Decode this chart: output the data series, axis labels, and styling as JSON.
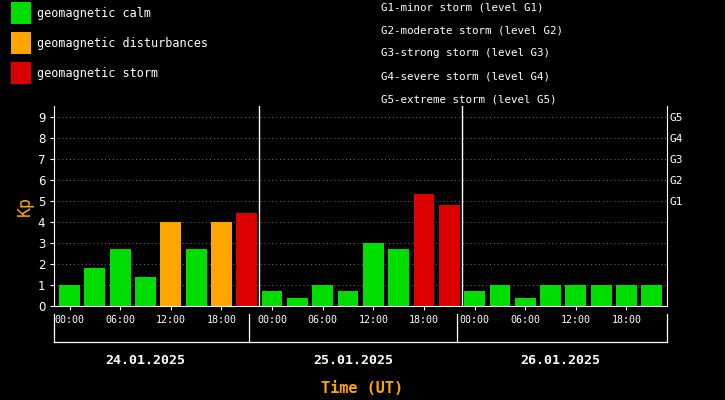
{
  "background_color": "#000000",
  "plot_bg_color": "#000000",
  "text_color": "#ffffff",
  "orange_color": "#FFA500",
  "title_x_label": "Time (UT)",
  "ylabel": "Kp",
  "ylim": [
    0,
    9.5
  ],
  "yticks": [
    0,
    1,
    2,
    3,
    4,
    5,
    6,
    7,
    8,
    9
  ],
  "right_labels": [
    {
      "text": "G5",
      "y": 9
    },
    {
      "text": "G4",
      "y": 8
    },
    {
      "text": "G3",
      "y": 7
    },
    {
      "text": "G2",
      "y": 6
    },
    {
      "text": "G1",
      "y": 5
    }
  ],
  "legend_items": [
    {
      "label": "geomagnetic calm",
      "color": "#00dd00"
    },
    {
      "label": "geomagnetic disturbances",
      "color": "#FFA500"
    },
    {
      "label": "geomagnetic storm",
      "color": "#dd0000"
    }
  ],
  "legend_text2": [
    "G1-minor storm (level G1)",
    "G2-moderate storm (level G2)",
    "G3-strong storm (level G3)",
    "G4-severe storm (level G4)",
    "G5-extreme storm (level G5)"
  ],
  "days": [
    {
      "label": "24.01.2025",
      "values": [
        1.0,
        1.8,
        2.7,
        1.4,
        4.0,
        2.7,
        4.0,
        4.4
      ],
      "colors": [
        "#00dd00",
        "#00dd00",
        "#00dd00",
        "#00dd00",
        "#FFA500",
        "#00dd00",
        "#FFA500",
        "#dd0000"
      ]
    },
    {
      "label": "25.01.2025",
      "values": [
        0.7,
        0.4,
        1.0,
        0.7,
        3.0,
        2.7,
        5.3,
        4.8
      ],
      "colors": [
        "#00dd00",
        "#00dd00",
        "#00dd00",
        "#00dd00",
        "#00dd00",
        "#00dd00",
        "#dd0000",
        "#dd0000"
      ]
    },
    {
      "label": "26.01.2025",
      "values": [
        0.7,
        1.0,
        0.4,
        1.0,
        1.0,
        1.0,
        1.0,
        1.0
      ],
      "colors": [
        "#00dd00",
        "#00dd00",
        "#00dd00",
        "#00dd00",
        "#00dd00",
        "#00dd00",
        "#00dd00",
        "#00dd00"
      ]
    }
  ],
  "xtick_labels": [
    "00:00",
    "06:00",
    "12:00",
    "18:00",
    "00:00",
    "06:00",
    "12:00",
    "18:00",
    "00:00",
    "06:00",
    "12:00",
    "18:00",
    "00:00"
  ],
  "n_bars_per_day": 8
}
